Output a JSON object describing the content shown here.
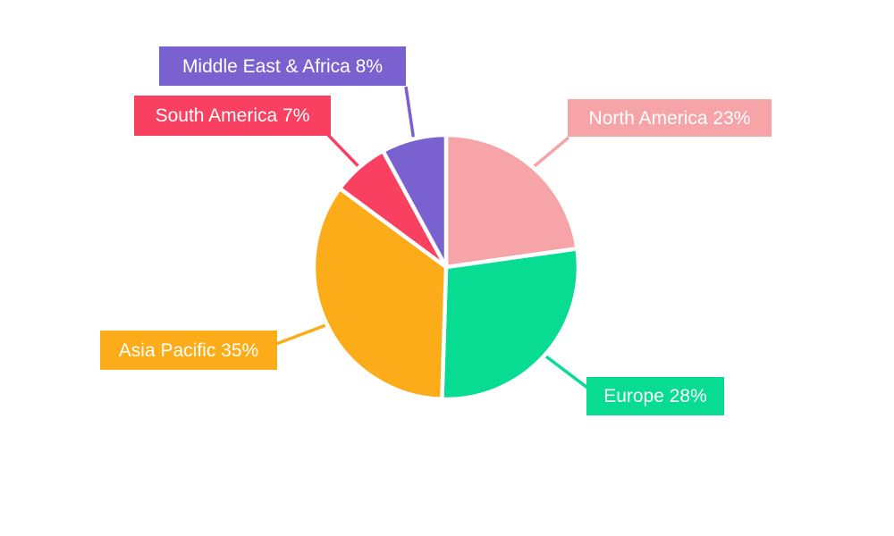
{
  "page": {
    "background": "#ffffff"
  },
  "chart_data": {
    "type": "pie",
    "title": "",
    "categories": [
      "North America",
      "Europe",
      "Asia Pacific",
      "South America",
      "Middle East & Africa"
    ],
    "values": [
      23,
      28,
      35,
      7,
      8
    ],
    "unit": "%",
    "labels": [
      "North America 23%",
      "Europe 28%",
      "Asia Pacific 35%",
      "South America 7%",
      "Middle East & Africa 8%"
    ],
    "colors": [
      "#f7a4a8",
      "#07dc92",
      "#fbac18",
      "#f94060",
      "#7a61d0"
    ],
    "start_angle_deg": 0,
    "direction": "clockwise",
    "slice_gap_color": "#ffffff",
    "label_text_color": "#ffffff",
    "legend_position": "none",
    "axes": "none",
    "grid": false
  }
}
